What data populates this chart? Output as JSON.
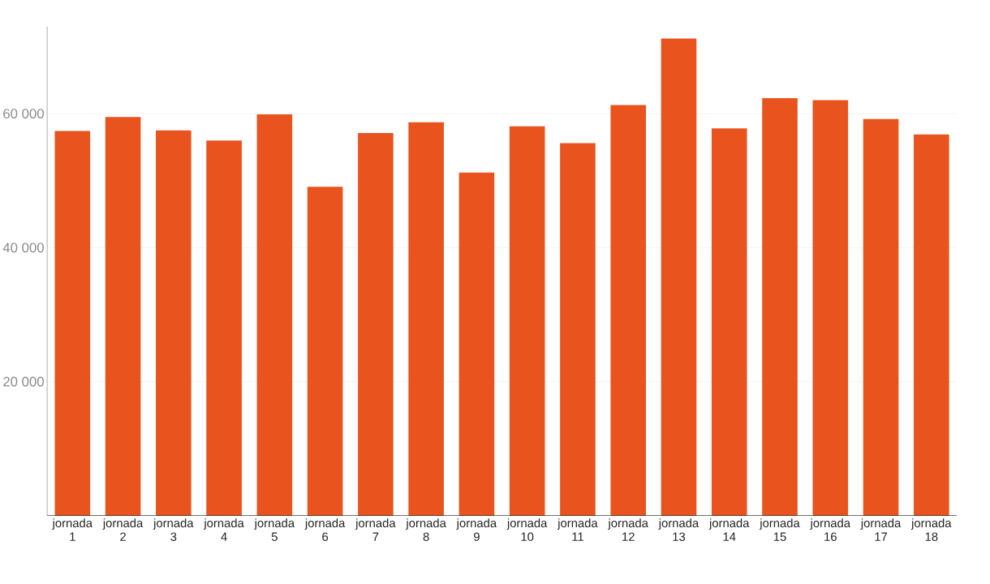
{
  "chart_data": {
    "type": "bar",
    "categories": [
      "jornada 1",
      "jornada 2",
      "jornada 3",
      "jornada 4",
      "jornada 5",
      "jornada 6",
      "jornada 7",
      "jornada 8",
      "jornada 9",
      "jornada 10",
      "jornada 11",
      "jornada 12",
      "jornada 13",
      "jornada 14",
      "jornada 15",
      "jornada 16",
      "jornada 17",
      "jornada 18"
    ],
    "values": [
      57400,
      59500,
      57500,
      56000,
      59900,
      49100,
      57100,
      58700,
      51200,
      58100,
      55600,
      61300,
      71200,
      57800,
      62300,
      62000,
      59200,
      56900
    ],
    "color": "#e8531e",
    "ylim": [
      0,
      73000
    ],
    "yticks": [
      {
        "value": 20000,
        "label": "20 000"
      },
      {
        "value": 40000,
        "label": "40 000"
      },
      {
        "value": 60000,
        "label": "60 000"
      }
    ],
    "grid": "y"
  }
}
